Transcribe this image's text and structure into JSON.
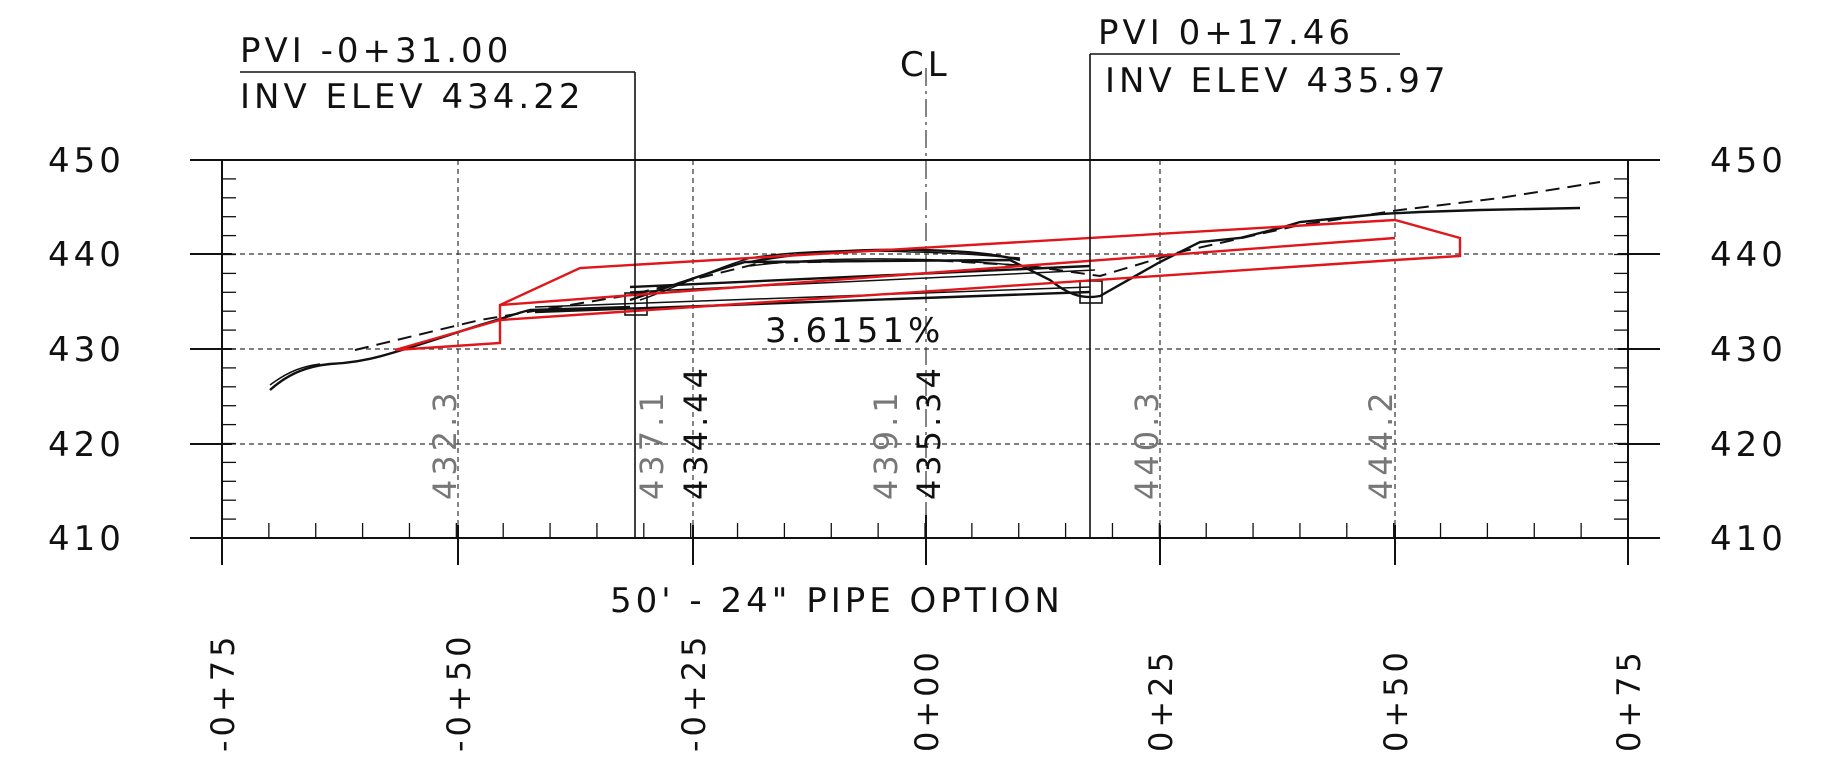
{
  "title": "50' - 24\" PIPE OPTION",
  "centerline_label": "CL",
  "slope_label": "3.6151%",
  "pvi_left": {
    "station": "PVI -0+31.00",
    "invert": "INV ELEV 434.22"
  },
  "pvi_right": {
    "station": "PVI 0+17.46",
    "invert": "INV ELEV 435.97"
  },
  "elevation_ticks_left": [
    "450",
    "440",
    "430",
    "420",
    "410"
  ],
  "elevation_ticks_right": [
    "450",
    "440",
    "430",
    "420",
    "410"
  ],
  "station_ticks": [
    "-0+75",
    "-0+50",
    "-0+25",
    "0+00",
    "0+25",
    "0+50",
    "0+75"
  ],
  "existing_ground_labels": [
    "432.3",
    "437.1",
    "439.1",
    "440.3",
    "444.2"
  ],
  "proposed_labels": [
    "434.44",
    "435.34"
  ],
  "colors": {
    "pipe": "#e0161b",
    "linework": "#111111"
  }
}
